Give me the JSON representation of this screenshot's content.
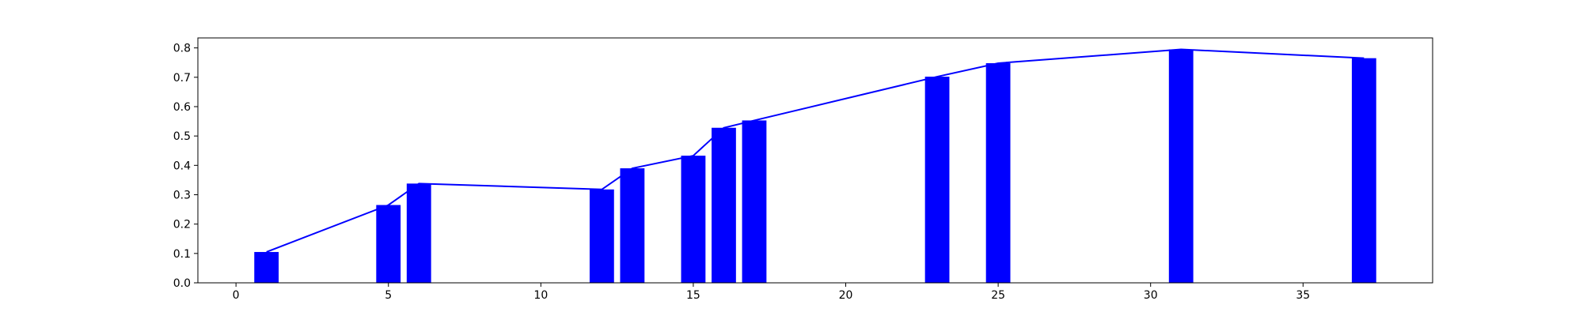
{
  "chart_data": {
    "type": "bar",
    "title": "",
    "xlabel": "",
    "ylabel": "",
    "xlim": [
      -1.25,
      39.25
    ],
    "ylim": [
      0,
      0.834
    ],
    "grid": false,
    "legend": "none",
    "bar_width": 0.8,
    "x_ticks": [
      0,
      5,
      10,
      15,
      20,
      25,
      30,
      35
    ],
    "y_ticks": [
      0.0,
      0.1,
      0.2,
      0.3,
      0.4,
      0.5,
      0.6,
      0.7,
      0.8
    ],
    "x_tick_labels": [
      "0",
      "5",
      "10",
      "15",
      "20",
      "25",
      "30",
      "35"
    ],
    "y_tick_labels": [
      "0.0",
      "0.1",
      "0.2",
      "0.3",
      "0.4",
      "0.5",
      "0.6",
      "0.7",
      "0.8"
    ],
    "x": [
      1,
      5,
      6,
      12,
      13,
      15,
      16,
      17,
      23,
      25,
      31,
      37
    ],
    "values": [
      0.105,
      0.265,
      0.338,
      0.318,
      0.39,
      0.433,
      0.528,
      0.553,
      0.702,
      0.748,
      0.795,
      0.765
    ],
    "bar_color": "#0000ff",
    "line_color": "#0000ff"
  }
}
